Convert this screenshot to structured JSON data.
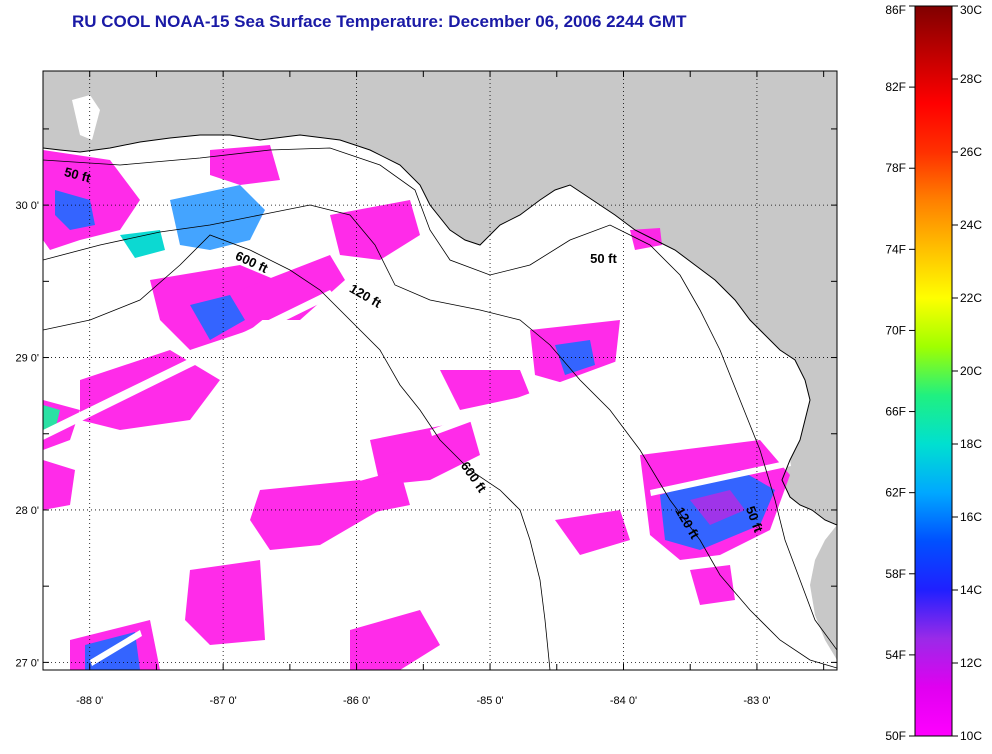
{
  "title": "RU COOL  NOAA-15  Sea Surface Temperature:  December 06, 2006 2244 GMT",
  "map": {
    "lon_ticks": [
      {
        "value": -88,
        "label": "-88 0'"
      },
      {
        "value": -87,
        "label": "-87 0'"
      },
      {
        "value": -86,
        "label": "-86 0'"
      },
      {
        "value": -85,
        "label": "-85 0'"
      },
      {
        "value": -84,
        "label": "-84 0'"
      },
      {
        "value": -83,
        "label": "-83 0'"
      }
    ],
    "lat_ticks": [
      {
        "value": 30,
        "label": "30 0'"
      },
      {
        "value": 29,
        "label": "29 0'"
      },
      {
        "value": 28,
        "label": "28 0'"
      },
      {
        "value": 27,
        "label": "27 0'"
      }
    ],
    "lon_range": [
      -88.35,
      -82.4
    ],
    "lat_range": [
      26.95,
      30.88
    ],
    "colors": {
      "land": "#c8c8c8",
      "ocean": "#ffffff",
      "grid": "#000000"
    },
    "contour_labels": [
      {
        "label": "50 ft",
        "lon": -88.1,
        "lat": 30.17,
        "angle": 15
      },
      {
        "label": "600 ft",
        "lon": -86.8,
        "lat": 29.6,
        "angle": 25
      },
      {
        "label": "120 ft",
        "lon": -85.95,
        "lat": 29.38,
        "angle": 30
      },
      {
        "label": "50 ft",
        "lon": -84.15,
        "lat": 29.62,
        "angle": 0
      },
      {
        "label": "600 ft",
        "lon": -85.15,
        "lat": 28.2,
        "angle": 55
      },
      {
        "label": "120 ft",
        "lon": -83.55,
        "lat": 27.9,
        "angle": 60
      },
      {
        "label": "50 ft",
        "lon": -83.05,
        "lat": 27.93,
        "angle": 70
      }
    ]
  },
  "colorbar": {
    "f_labels": [
      "86F",
      "82F",
      "78F",
      "74F",
      "70F",
      "66F",
      "62F",
      "58F",
      "54F",
      "50F"
    ],
    "c_labels": [
      "30C",
      "28C",
      "26C",
      "24C",
      "22C",
      "20C",
      "18C",
      "16C",
      "14C",
      "12C",
      "10C"
    ],
    "stops": [
      "#ff00ff",
      "#e000f0",
      "#9a2ae8",
      "#2020ff",
      "#0050ff",
      "#00a8ff",
      "#00e0d0",
      "#20f080",
      "#a0ff00",
      "#ffff00",
      "#ffc000",
      "#ff8000",
      "#ff3000",
      "#ff0000",
      "#c00000",
      "#800000"
    ]
  }
}
